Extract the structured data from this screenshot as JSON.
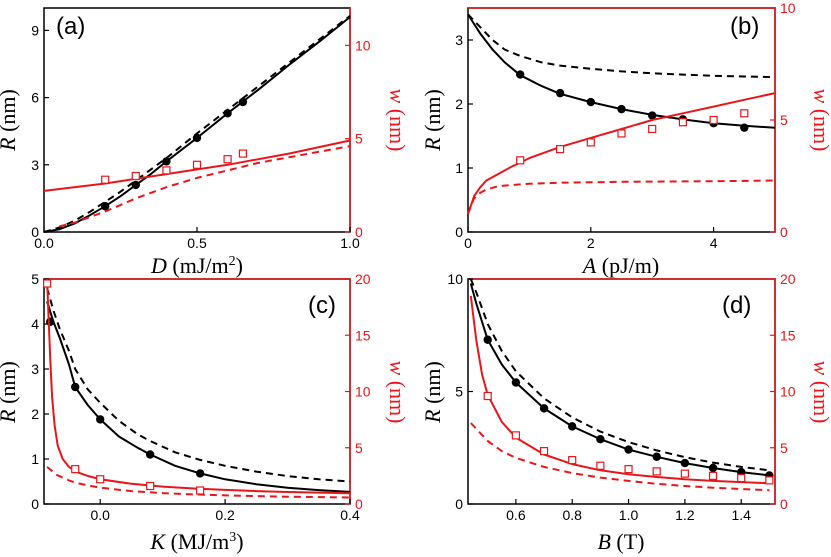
{
  "colors": {
    "left_axis": "#000000",
    "right_axis": "#e8161b"
  },
  "chart_data": [
    {
      "type": "line",
      "panel_label": "(a)",
      "xlabel_var": "D",
      "xlabel_unit": " (mJ/m",
      "xlabel_sup": "2",
      "xlabel_close": ")",
      "ylabel_left_var": "R",
      "ylabel_left_unit": " (nm)",
      "ylabel_right_var": "w",
      "ylabel_right_unit": " (nm)",
      "xlim": [
        0,
        1.0
      ],
      "ylim_left": [
        0,
        10
      ],
      "ylim_right": [
        0,
        12
      ],
      "xticks": [
        0.0,
        0.5,
        1.0
      ],
      "xtick_labels": [
        "0.0",
        "0.5",
        "1.0"
      ],
      "yticks_left": [
        0,
        3,
        6,
        9
      ],
      "ytick_labels_left": [
        "0",
        "3",
        "6",
        "9"
      ],
      "yticks_right": [
        0,
        5,
        10
      ],
      "ytick_labels_right": [
        "0",
        "5",
        "10"
      ],
      "series": [
        {
          "name": "R solid",
          "axis": "left",
          "style": "solid",
          "x": [
            0,
            0.05,
            0.1,
            0.15,
            0.2,
            0.25,
            0.3,
            0.35,
            0.4,
            0.5,
            0.6,
            0.7,
            0.8,
            0.9,
            1.0
          ],
          "y": [
            0,
            0.12,
            0.38,
            0.75,
            1.15,
            1.6,
            2.1,
            2.6,
            3.15,
            4.2,
            5.3,
            6.35,
            7.45,
            8.5,
            9.6
          ]
        },
        {
          "name": "R dashed",
          "axis": "left",
          "style": "dashed",
          "x": [
            0,
            0.05,
            0.1,
            0.15,
            0.2,
            0.25,
            0.3,
            0.35,
            0.4,
            0.5,
            0.6,
            0.7,
            0.8,
            0.9,
            1.0
          ],
          "y": [
            0,
            0.2,
            0.5,
            0.9,
            1.35,
            1.8,
            2.3,
            2.8,
            3.3,
            4.4,
            5.45,
            6.5,
            7.55,
            8.6,
            9.65
          ]
        },
        {
          "name": "R markers",
          "axis": "left",
          "style": "filled-circle",
          "x": [
            0.2,
            0.3,
            0.4,
            0.5,
            0.6,
            0.65
          ],
          "y": [
            1.15,
            2.1,
            3.15,
            4.2,
            5.3,
            5.8
          ]
        },
        {
          "name": "w solid",
          "axis": "right",
          "style": "solid",
          "x": [
            0,
            0.2,
            0.4,
            0.6,
            0.8,
            1.0
          ],
          "y": [
            2.2,
            2.6,
            3.1,
            3.6,
            4.2,
            4.9
          ]
        },
        {
          "name": "w dashed",
          "axis": "right",
          "style": "dashed",
          "x": [
            0.05,
            0.1,
            0.2,
            0.3,
            0.4,
            0.5,
            0.6,
            0.7,
            0.8,
            0.9,
            1.0
          ],
          "y": [
            0.3,
            0.5,
            1.1,
            1.8,
            2.4,
            2.9,
            3.3,
            3.7,
            4.0,
            4.3,
            4.6
          ]
        },
        {
          "name": "w markers",
          "axis": "right",
          "style": "open-square",
          "x": [
            0.2,
            0.3,
            0.4,
            0.5,
            0.6,
            0.65
          ],
          "y": [
            2.8,
            3.0,
            3.3,
            3.6,
            3.9,
            4.2
          ]
        }
      ]
    },
    {
      "type": "line",
      "panel_label": "(b)",
      "xlabel_var": "A",
      "xlabel_unit": " (pJ/m)",
      "xlabel_sup": "",
      "xlabel_close": "",
      "ylabel_left_var": "R",
      "ylabel_left_unit": " (nm)",
      "ylabel_right_var": "w",
      "ylabel_right_unit": " (nm)",
      "xlim": [
        0,
        5.0
      ],
      "ylim_left": [
        0,
        3.5
      ],
      "ylim_right": [
        0,
        10
      ],
      "xticks": [
        0,
        2,
        4
      ],
      "xtick_labels": [
        "0",
        "2",
        "4"
      ],
      "yticks_left": [
        0,
        1,
        2,
        3
      ],
      "ytick_labels_left": [
        "0",
        "1",
        "2",
        "3"
      ],
      "yticks_right": [
        0,
        5,
        10
      ],
      "ytick_labels_right": [
        "0",
        "5",
        "10"
      ],
      "series": [
        {
          "name": "R solid",
          "axis": "left",
          "style": "solid",
          "x": [
            0,
            0.1,
            0.2,
            0.4,
            0.6,
            0.85,
            1.2,
            1.5,
            2.0,
            2.5,
            3.0,
            3.5,
            4.0,
            4.5,
            5.0
          ],
          "y": [
            3.4,
            3.25,
            3.1,
            2.85,
            2.65,
            2.45,
            2.28,
            2.16,
            2.03,
            1.92,
            1.83,
            1.76,
            1.7,
            1.66,
            1.63
          ]
        },
        {
          "name": "R dashed",
          "axis": "left",
          "style": "dashed",
          "x": [
            0,
            0.1,
            0.2,
            0.4,
            0.6,
            0.85,
            1.2,
            1.5,
            2.0,
            2.5,
            3.0,
            3.5,
            4.0,
            4.5,
            5.0
          ],
          "y": [
            3.4,
            3.3,
            3.2,
            3.0,
            2.85,
            2.75,
            2.65,
            2.6,
            2.55,
            2.51,
            2.48,
            2.46,
            2.44,
            2.43,
            2.42
          ]
        },
        {
          "name": "R markers",
          "axis": "left",
          "style": "filled-circle",
          "x": [
            0.85,
            1.5,
            2.0,
            2.5,
            3.0,
            3.5,
            4.0,
            4.5
          ],
          "y": [
            2.46,
            2.17,
            2.03,
            1.92,
            1.82,
            1.76,
            1.7,
            1.63
          ]
        },
        {
          "name": "w solid",
          "axis": "right",
          "style": "solid",
          "x": [
            0,
            0.05,
            0.1,
            0.2,
            0.3,
            0.5,
            0.7,
            1.0,
            1.5,
            2.0,
            2.5,
            3.0,
            3.5,
            4.0,
            4.5,
            5.0
          ],
          "y": [
            0.8,
            1.2,
            1.6,
            2.0,
            2.3,
            2.6,
            2.9,
            3.3,
            3.8,
            4.2,
            4.6,
            5.0,
            5.3,
            5.6,
            5.9,
            6.2
          ]
        },
        {
          "name": "w dashed",
          "axis": "right",
          "style": "dashed",
          "x": [
            0,
            0.05,
            0.1,
            0.2,
            0.3,
            0.5,
            0.7,
            1.0,
            1.5,
            2.0,
            2.5,
            3.0,
            3.5,
            4.0,
            4.5,
            5.0
          ],
          "y": [
            0.8,
            1.2,
            1.5,
            1.75,
            1.9,
            2.05,
            2.1,
            2.15,
            2.2,
            2.22,
            2.24,
            2.25,
            2.26,
            2.27,
            2.28,
            2.3
          ]
        },
        {
          "name": "w markers",
          "axis": "right",
          "style": "open-square",
          "x": [
            0.85,
            1.5,
            2.0,
            2.5,
            3.0,
            3.5,
            4.0,
            4.5
          ],
          "y": [
            3.2,
            3.7,
            4.0,
            4.4,
            4.6,
            4.9,
            5.0,
            5.3
          ]
        }
      ]
    },
    {
      "type": "line",
      "panel_label": "(c)",
      "xlabel_var": "K",
      "xlabel_unit": " (MJ/m",
      "xlabel_sup": "3",
      "xlabel_close": ")",
      "ylabel_left_var": "R",
      "ylabel_left_unit": " (nm)",
      "ylabel_right_var": "w",
      "ylabel_right_unit": " (nm)",
      "xlim": [
        -0.09,
        0.4
      ],
      "ylim_left": [
        0,
        5
      ],
      "ylim_right": [
        0,
        20
      ],
      "xticks": [
        0.0,
        0.2,
        0.4
      ],
      "xtick_labels": [
        "0.0",
        "0.2",
        "0.4"
      ],
      "yticks_left": [
        0,
        1,
        2,
        3,
        4,
        5
      ],
      "ytick_labels_left": [
        "0",
        "1",
        "2",
        "3",
        "4",
        "5"
      ],
      "yticks_right": [
        0,
        5,
        10,
        15,
        20
      ],
      "ytick_labels_right": [
        "0",
        "5",
        "10",
        "15",
        "20"
      ],
      "series": [
        {
          "name": "R solid",
          "axis": "left",
          "style": "solid",
          "x": [
            -0.085,
            -0.075,
            -0.065,
            -0.05,
            -0.04,
            -0.02,
            0.0,
            0.03,
            0.06,
            0.08,
            0.12,
            0.16,
            0.2,
            0.25,
            0.3,
            0.35,
            0.4
          ],
          "y": [
            4.5,
            4.05,
            3.7,
            3.1,
            2.6,
            2.2,
            1.88,
            1.5,
            1.25,
            1.1,
            0.85,
            0.68,
            0.55,
            0.44,
            0.36,
            0.31,
            0.27
          ]
        },
        {
          "name": "R dashed",
          "axis": "left",
          "style": "dashed",
          "x": [
            -0.085,
            -0.075,
            -0.065,
            -0.05,
            -0.04,
            -0.02,
            0.0,
            0.03,
            0.06,
            0.08,
            0.12,
            0.16,
            0.2,
            0.25,
            0.3,
            0.35,
            0.4
          ],
          "y": [
            4.8,
            4.3,
            3.9,
            3.4,
            3.0,
            2.55,
            2.25,
            1.85,
            1.55,
            1.4,
            1.15,
            0.98,
            0.85,
            0.72,
            0.62,
            0.55,
            0.5
          ]
        },
        {
          "name": "R markers",
          "axis": "left",
          "style": "filled-circle",
          "x": [
            -0.08,
            -0.04,
            0.0,
            0.08,
            0.16
          ],
          "y": [
            4.05,
            2.6,
            1.88,
            1.1,
            0.68
          ]
        },
        {
          "name": "w solid",
          "axis": "right",
          "style": "solid",
          "x": [
            -0.085,
            -0.083,
            -0.08,
            -0.077,
            -0.073,
            -0.068,
            -0.06,
            -0.05,
            -0.04,
            -0.02,
            0.0,
            0.05,
            0.1,
            0.15,
            0.2,
            0.25,
            0.3,
            0.35,
            0.4
          ],
          "y": [
            20,
            17,
            13,
            9.5,
            7,
            5.2,
            4.0,
            3.3,
            2.9,
            2.5,
            2.2,
            1.8,
            1.55,
            1.38,
            1.25,
            1.15,
            1.07,
            1.01,
            0.96
          ]
        },
        {
          "name": "w dashed",
          "axis": "right",
          "style": "dashed",
          "x": [
            -0.085,
            -0.07,
            -0.05,
            -0.04,
            -0.02,
            0.0,
            0.05,
            0.1,
            0.15,
            0.2,
            0.25,
            0.3,
            0.35,
            0.4
          ],
          "y": [
            3.3,
            2.6,
            2.1,
            1.9,
            1.65,
            1.45,
            1.15,
            0.97,
            0.85,
            0.76,
            0.7,
            0.65,
            0.61,
            0.58
          ]
        },
        {
          "name": "w markers",
          "axis": "right",
          "style": "open-square",
          "x": [
            -0.085,
            -0.04,
            0.0,
            0.08,
            0.16
          ],
          "y": [
            19.6,
            3.1,
            2.2,
            1.6,
            1.2
          ]
        }
      ]
    },
    {
      "type": "line",
      "panel_label": "(d)",
      "xlabel_var": "B",
      "xlabel_unit": " (T)",
      "xlabel_sup": "",
      "xlabel_close": "",
      "ylabel_left_var": "R",
      "ylabel_left_unit": " (nm)",
      "ylabel_right_var": "w",
      "ylabel_right_unit": " (nm)",
      "xlim": [
        0.43,
        1.52
      ],
      "ylim_left": [
        0,
        10
      ],
      "ylim_right": [
        0,
        20
      ],
      "xticks": [
        0.6,
        0.8,
        1.0,
        1.2,
        1.4
      ],
      "xtick_labels": [
        "0.6",
        "0.8",
        "1.0",
        "1.2",
        "1.4"
      ],
      "yticks_left": [
        0,
        5,
        10
      ],
      "ytick_labels_left": [
        "0",
        "5",
        "10"
      ],
      "yticks_right": [
        0,
        5,
        10,
        15,
        20
      ],
      "ytick_labels_right": [
        "0",
        "5",
        "10",
        "15",
        "20"
      ],
      "series": [
        {
          "name": "R solid",
          "axis": "left",
          "style": "solid",
          "x": [
            0.44,
            0.46,
            0.5,
            0.55,
            0.6,
            0.7,
            0.8,
            0.9,
            1.0,
            1.1,
            1.2,
            1.3,
            1.4,
            1.5
          ],
          "y": [
            9.8,
            8.9,
            7.3,
            6.2,
            5.4,
            4.25,
            3.45,
            2.88,
            2.42,
            2.1,
            1.82,
            1.6,
            1.42,
            1.27
          ]
        },
        {
          "name": "R dashed",
          "axis": "left",
          "style": "dashed",
          "x": [
            0.44,
            0.46,
            0.5,
            0.55,
            0.6,
            0.7,
            0.8,
            0.9,
            1.0,
            1.1,
            1.2,
            1.3,
            1.4,
            1.5
          ],
          "y": [
            10,
            9.4,
            8.0,
            6.8,
            5.9,
            4.7,
            3.85,
            3.22,
            2.75,
            2.38,
            2.08,
            1.84,
            1.65,
            1.5
          ]
        },
        {
          "name": "R markers",
          "axis": "left",
          "style": "filled-circle",
          "x": [
            0.5,
            0.6,
            0.7,
            0.8,
            0.9,
            1.0,
            1.1,
            1.2,
            1.3,
            1.4,
            1.5
          ],
          "y": [
            7.3,
            5.4,
            4.25,
            3.45,
            2.88,
            2.42,
            2.1,
            1.82,
            1.6,
            1.42,
            1.27
          ]
        },
        {
          "name": "w solid",
          "axis": "right",
          "style": "solid",
          "x": [
            0.44,
            0.46,
            0.48,
            0.5,
            0.55,
            0.6,
            0.7,
            0.8,
            0.9,
            1.0,
            1.1,
            1.2,
            1.3,
            1.4,
            1.5
          ],
          "y": [
            18.5,
            14.5,
            11.5,
            9.7,
            7.3,
            5.9,
            4.4,
            3.55,
            3.0,
            2.65,
            2.4,
            2.2,
            2.05,
            1.95,
            1.85
          ]
        },
        {
          "name": "w dashed",
          "axis": "right",
          "style": "dashed",
          "x": [
            0.44,
            0.5,
            0.55,
            0.6,
            0.7,
            0.8,
            0.9,
            1.0,
            1.1,
            1.2,
            1.3,
            1.4,
            1.5
          ],
          "y": [
            7.2,
            5.6,
            4.7,
            4.1,
            3.3,
            2.75,
            2.35,
            2.05,
            1.8,
            1.6,
            1.45,
            1.33,
            1.23
          ]
        },
        {
          "name": "w markers",
          "axis": "right",
          "style": "open-square",
          "x": [
            0.5,
            0.6,
            0.7,
            0.8,
            0.9,
            1.0,
            1.1,
            1.2,
            1.3,
            1.4,
            1.5
          ],
          "y": [
            9.6,
            6.1,
            4.7,
            3.9,
            3.4,
            3.1,
            2.9,
            2.7,
            2.5,
            2.3,
            2.1
          ]
        }
      ]
    }
  ]
}
